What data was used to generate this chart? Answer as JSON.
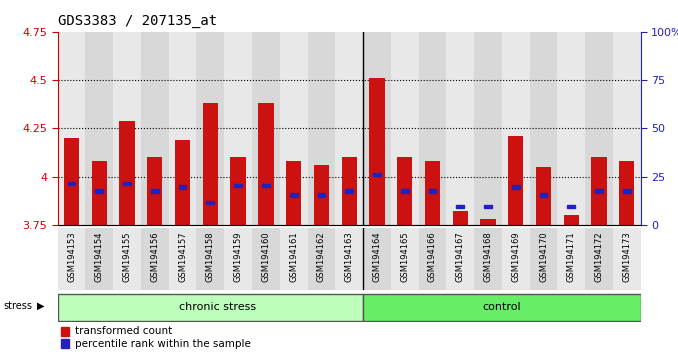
{
  "title": "GDS3383 / 207135_at",
  "samples": [
    "GSM194153",
    "GSM194154",
    "GSM194155",
    "GSM194156",
    "GSM194157",
    "GSM194158",
    "GSM194159",
    "GSM194160",
    "GSM194161",
    "GSM194162",
    "GSM194163",
    "GSM194164",
    "GSM194165",
    "GSM194166",
    "GSM194167",
    "GSM194168",
    "GSM194169",
    "GSM194170",
    "GSM194171",
    "GSM194172",
    "GSM194173"
  ],
  "red_values": [
    4.2,
    4.08,
    4.29,
    4.1,
    4.19,
    4.38,
    4.1,
    4.38,
    4.08,
    4.06,
    4.1,
    4.51,
    4.1,
    4.08,
    3.82,
    3.78,
    4.21,
    4.05,
    3.8,
    4.1,
    4.08
  ],
  "blue_positions": [
    3.965,
    3.925,
    3.965,
    3.925,
    3.945,
    3.865,
    3.955,
    3.955,
    3.905,
    3.905,
    3.925,
    4.01,
    3.925,
    3.925,
    3.845,
    3.845,
    3.945,
    3.905,
    3.845,
    3.925,
    3.925
  ],
  "blue_low": [
    false,
    false,
    false,
    false,
    false,
    false,
    false,
    false,
    false,
    false,
    false,
    false,
    false,
    false,
    true,
    true,
    false,
    false,
    true,
    false,
    false
  ],
  "chronic_count": 11,
  "ymin": 3.75,
  "ymax": 4.75,
  "yticks": [
    3.75,
    4.0,
    4.25,
    4.5,
    4.75
  ],
  "ytick_labels": [
    "3.75",
    "4",
    "4.25",
    "4.5",
    "4.75"
  ],
  "right_yticks": [
    0,
    25,
    50,
    75,
    100
  ],
  "right_ytick_labels": [
    "0",
    "25",
    "50",
    "75",
    "100%"
  ],
  "bar_color": "#cc1111",
  "blue_color": "#2222bb",
  "baseline": 3.75,
  "bar_width": 0.55,
  "legend_items": [
    "transformed count",
    "percentile rank within the sample"
  ],
  "stress_label": "stress",
  "grid_dotted_at": [
    4.0,
    4.25,
    4.5
  ],
  "xlabel_color": "#cc0000",
  "right_axis_color": "#2222bb",
  "chronic_color": "#bbffbb",
  "control_color": "#66ee66",
  "col_bg_even": "#e8e8e8",
  "col_bg_odd": "#d8d8d8"
}
